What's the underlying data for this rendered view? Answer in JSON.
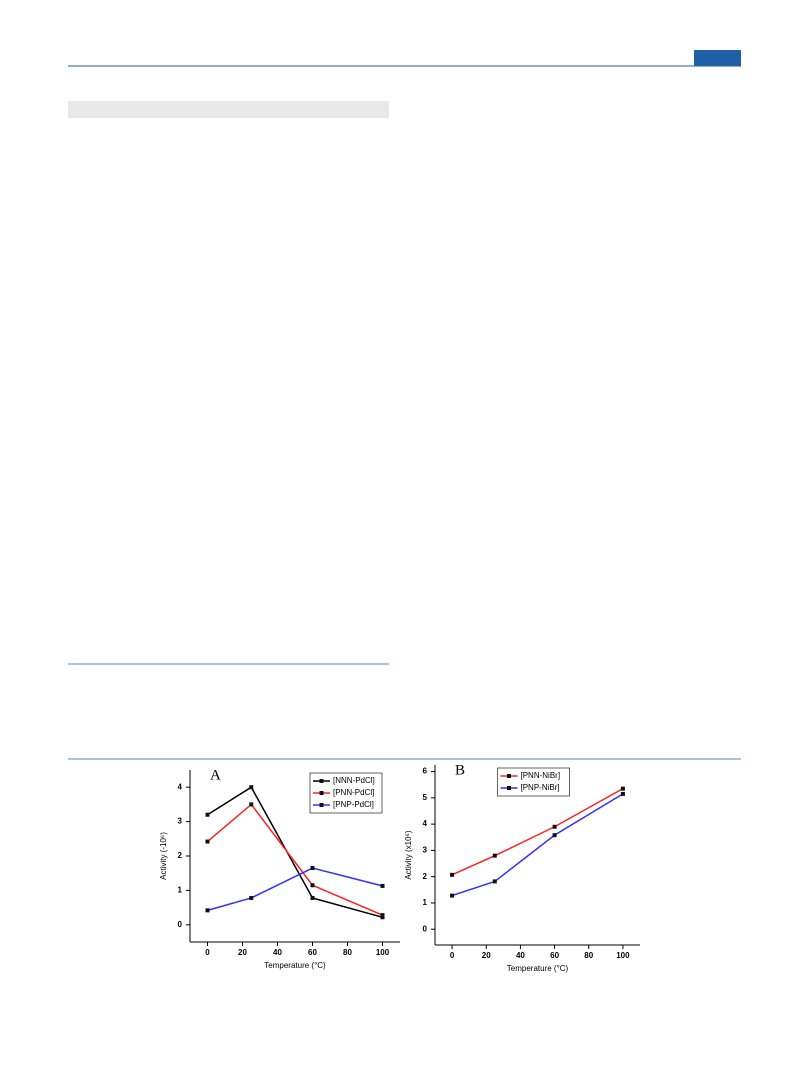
{
  "chart_data": [
    {
      "type": "line",
      "label": "A",
      "x_label": "Temperature (°C)",
      "y_label": "Activity (-10⁶)",
      "x": [
        0,
        25,
        60,
        100
      ],
      "xlim": [
        -10,
        110
      ],
      "xticks": [
        0,
        20,
        40,
        60,
        80,
        100
      ],
      "ylim": [
        -0.5,
        4.5
      ],
      "yticks": [
        0,
        1,
        2,
        3,
        4
      ],
      "legend": "upper right",
      "series": [
        {
          "name": "[NNN-PdCl]",
          "color": "#000000",
          "values": [
            3.2,
            4.0,
            0.78,
            0.22
          ]
        },
        {
          "name": "[PNN-PdCl]",
          "color": "#ff2020",
          "values": [
            2.42,
            3.5,
            1.15,
            0.28
          ]
        },
        {
          "name": "[PNP-PdCl]",
          "color": "#3030ff",
          "values": [
            0.42,
            0.78,
            1.65,
            1.13
          ]
        }
      ]
    },
    {
      "type": "line",
      "label": "B",
      "x_label": "Temperature (°C)",
      "y_label": "Activity (x10⁵)",
      "x": [
        0,
        25,
        60,
        100
      ],
      "xlim": [
        -10,
        110
      ],
      "xticks": [
        0,
        20,
        40,
        60,
        80,
        100
      ],
      "ylim": [
        -0.6,
        6.25
      ],
      "yticks": [
        0,
        1,
        2,
        3,
        4,
        5,
        6
      ],
      "legend": "upper center",
      "series": [
        {
          "name": "[PNN-NiBr]",
          "color": "#ff2020",
          "values": [
            2.07,
            2.8,
            3.9,
            5.35
          ]
        },
        {
          "name": "[PNP-NiBr]",
          "color": "#3030ff",
          "values": [
            1.28,
            1.82,
            3.58,
            5.15
          ]
        }
      ]
    }
  ]
}
